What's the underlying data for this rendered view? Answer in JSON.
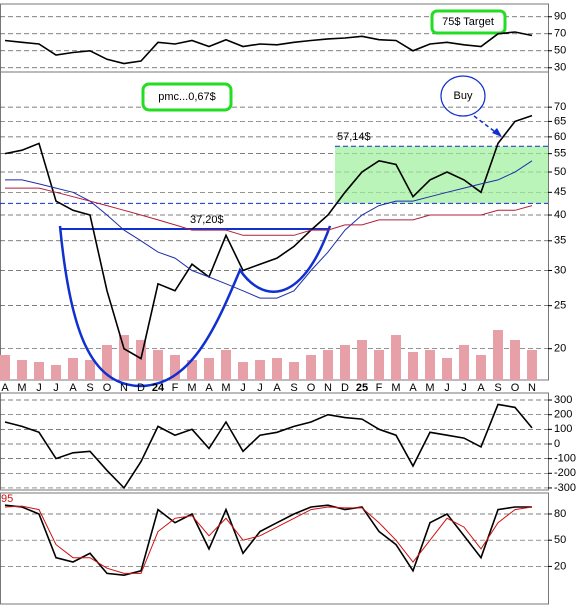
{
  "chart_data": [
    {
      "type": "line",
      "log_scale": true,
      "grid": true,
      "categories": [
        "A",
        "M",
        "J",
        "J",
        "A",
        "S",
        "O",
        "N",
        "D",
        "24",
        "F",
        "M",
        "A",
        "M",
        "J",
        "J",
        "A",
        "S",
        "O",
        "N",
        "D",
        "25",
        "F",
        "M",
        "A",
        "M",
        "J",
        "J",
        "A",
        "S",
        "O",
        "N"
      ],
      "ylim": [
        17,
        84
      ],
      "yticks": [
        20,
        25,
        30,
        35,
        40,
        45,
        50,
        55,
        60,
        65,
        70
      ],
      "series": [
        {
          "color": "#000000",
          "values": [
            55,
            56,
            58,
            43,
            41,
            40,
            27,
            20,
            19,
            28,
            27,
            31,
            29,
            36,
            30,
            31,
            32,
            34,
            37,
            40,
            45,
            50,
            53,
            52,
            44,
            48,
            50,
            48,
            45,
            58,
            65,
            67
          ]
        },
        {
          "color": "#1f2fa8",
          "values": [
            48,
            48,
            47,
            46,
            45,
            43,
            40,
            37,
            35,
            33,
            32,
            30,
            29,
            28,
            27,
            26,
            26,
            27,
            30,
            33,
            37,
            40,
            42,
            43,
            43,
            44,
            45,
            46,
            47,
            48,
            50,
            53
          ]
        },
        {
          "color": "#b0203a",
          "values": [
            46,
            46,
            46,
            45,
            44,
            43,
            42,
            41,
            40,
            39,
            38,
            37,
            37,
            37,
            36,
            36,
            36,
            36,
            37,
            37,
            38,
            38,
            39,
            39,
            39,
            40,
            40,
            40,
            40,
            41,
            41,
            42
          ]
        }
      ],
      "volume": {
        "color": "#e8a0a8",
        "ylim": [
          0,
          100
        ],
        "values": [
          25,
          20,
          18,
          15,
          22,
          20,
          35,
          45,
          40,
          30,
          25,
          20,
          22,
          30,
          18,
          20,
          22,
          18,
          25,
          30,
          35,
          40,
          30,
          45,
          28,
          30,
          22,
          35,
          25,
          50,
          40,
          30
        ]
      },
      "levels": [
        {
          "value": 37.2,
          "label": "37,20$"
        },
        {
          "value": 57.14,
          "label": "57,14$"
        }
      ],
      "support": 42.5,
      "annotations": [
        "pmc...0,67$",
        "Buy",
        "75$ Target"
      ]
    },
    {
      "type": "line",
      "grid": true,
      "ylim": [
        25,
        105
      ],
      "yticks": [
        30,
        50,
        70,
        90
      ],
      "series": [
        {
          "color": "#000000",
          "values": [
            62,
            60,
            58,
            45,
            48,
            50,
            40,
            35,
            38,
            60,
            58,
            62,
            55,
            63,
            55,
            58,
            57,
            60,
            62,
            64,
            65,
            67,
            63,
            62,
            50,
            58,
            60,
            57,
            55,
            70,
            72,
            68
          ]
        }
      ]
    },
    {
      "type": "line",
      "grid": true,
      "ylim": [
        -314,
        348
      ],
      "yticks": [
        300,
        200,
        100,
        0,
        -100,
        -200,
        -300
      ],
      "series": [
        {
          "color": "#000000",
          "values": [
            150,
            120,
            80,
            -100,
            -60,
            -50,
            -180,
            -300,
            -120,
            120,
            60,
            100,
            -30,
            150,
            -50,
            60,
            80,
            120,
            150,
            200,
            180,
            170,
            100,
            60,
            -150,
            80,
            60,
            40,
            -20,
            270,
            250,
            110
          ]
        }
      ]
    },
    {
      "type": "line",
      "grid": true,
      "ylim": [
        -23,
        104
      ],
      "yticks": [
        80,
        50,
        20
      ],
      "current": 95,
      "series": [
        {
          "color": "#000000",
          "values": [
            90,
            88,
            80,
            30,
            25,
            35,
            12,
            10,
            15,
            85,
            70,
            80,
            40,
            85,
            35,
            60,
            70,
            80,
            88,
            90,
            85,
            88,
            60,
            45,
            15,
            70,
            80,
            55,
            30,
            85,
            88,
            88
          ]
        },
        {
          "color": "#d01010",
          "values": [
            88,
            89,
            85,
            45,
            30,
            30,
            18,
            12,
            12,
            60,
            75,
            78,
            55,
            75,
            50,
            55,
            65,
            75,
            85,
            88,
            87,
            87,
            70,
            50,
            25,
            50,
            75,
            65,
            40,
            70,
            85,
            88
          ]
        }
      ]
    }
  ]
}
